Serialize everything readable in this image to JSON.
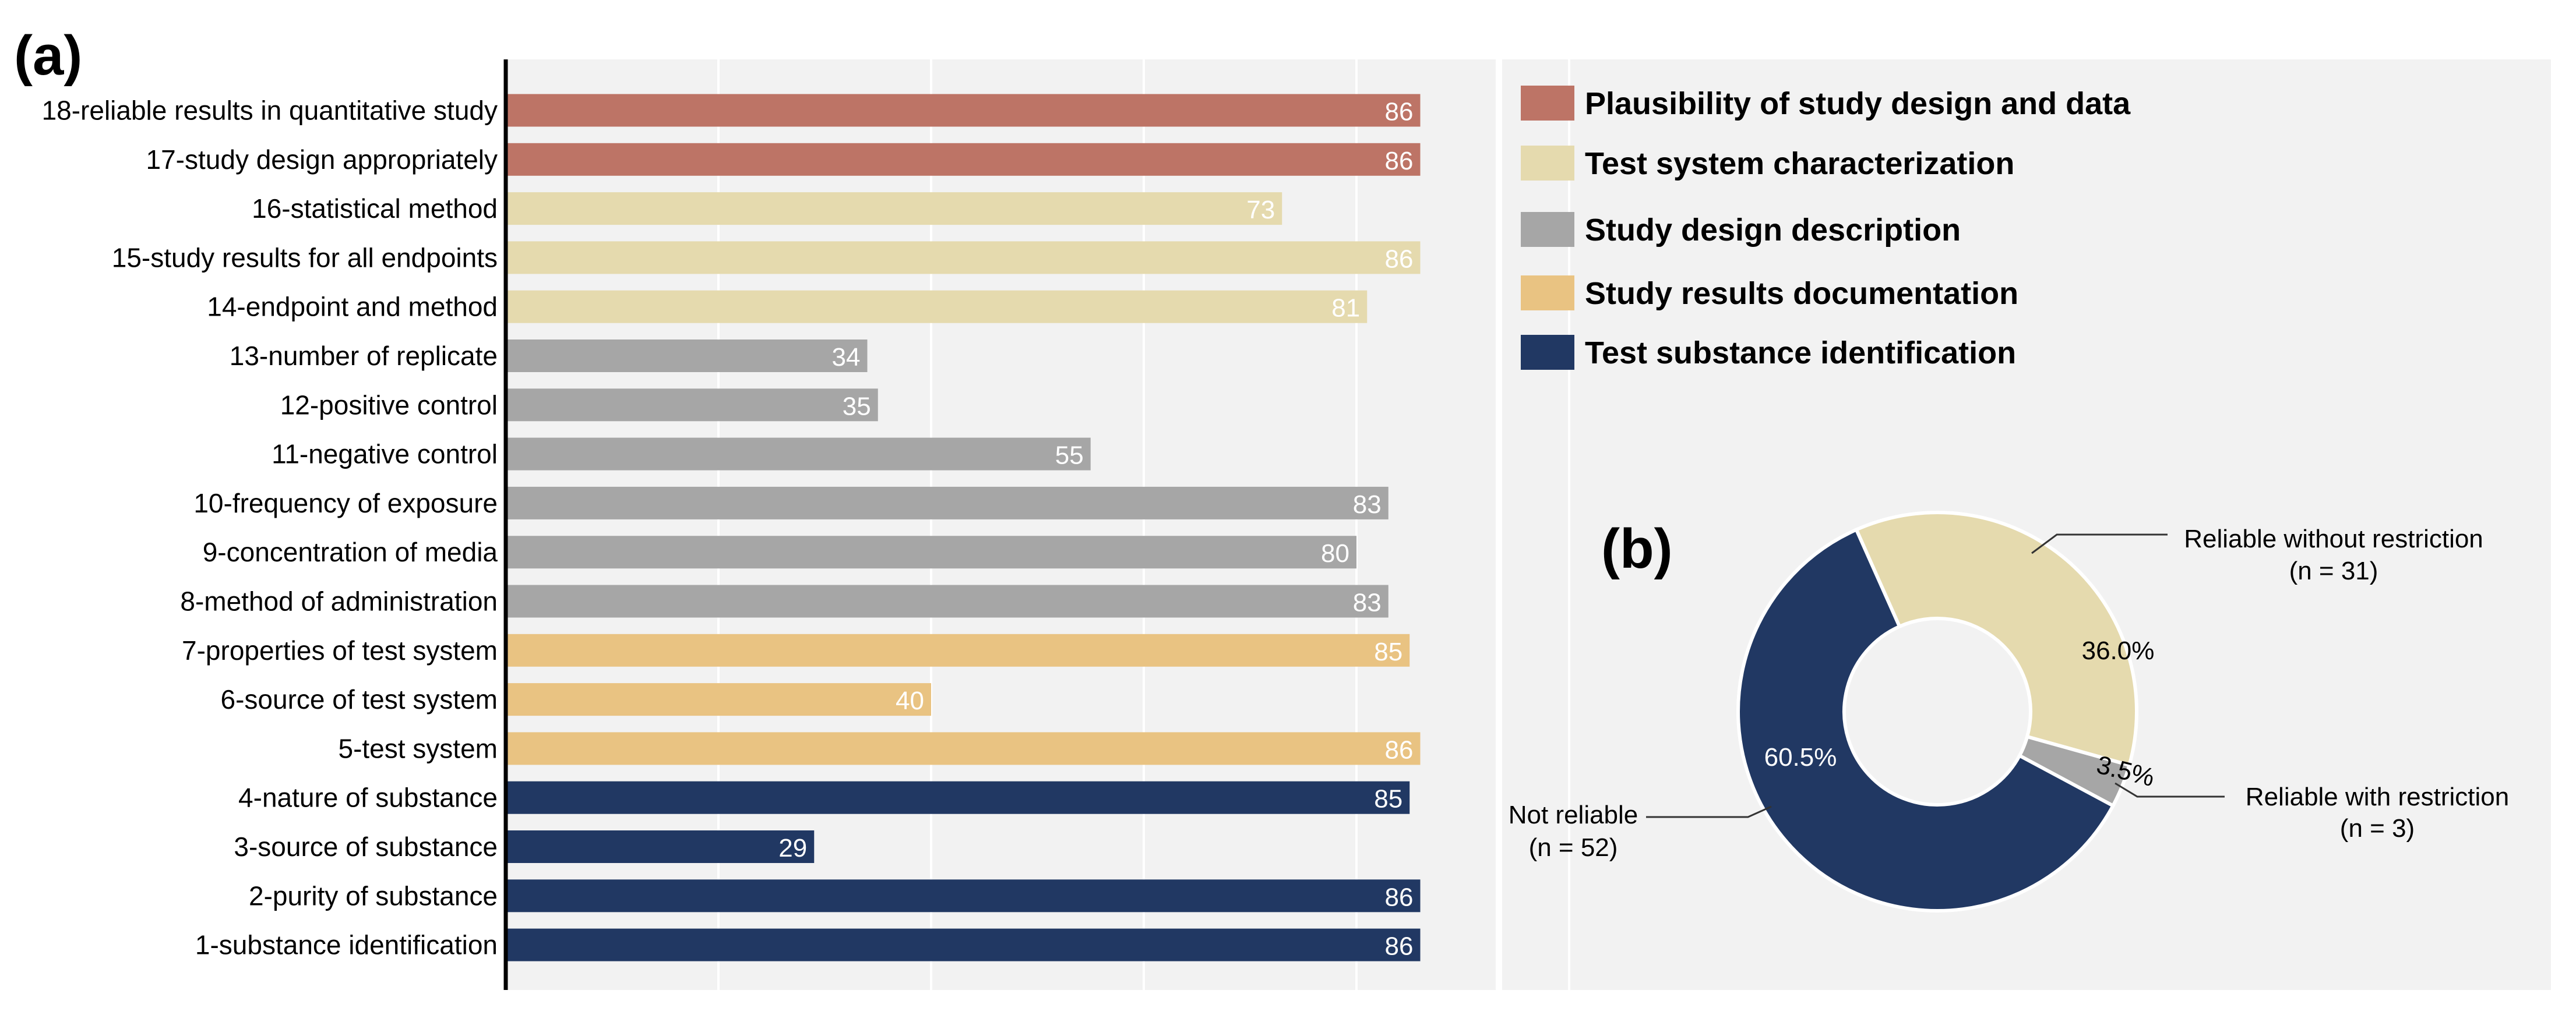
{
  "chart_data": [
    {
      "type": "bar",
      "orientation": "horizontal",
      "panel_label": "(a)",
      "grid": true,
      "xlim": [
        0,
        100
      ],
      "categories": [
        "18-reliable results in quantitative study",
        "17-study design appropriately",
        "16-statistical method",
        "15-study results for all endpoints",
        "14-endpoint and method",
        "13-number of replicate",
        "12-positive control",
        "11-negative control",
        "10-frequency of exposure",
        "9-concentration of media",
        "8-method of administration",
        "7-properties of test system",
        "6-source of test system",
        "5-test system",
        "4-nature of substance",
        "3-source  of substance",
        "2-purity of substance",
        "1-substance identification"
      ],
      "values": [
        86,
        86,
        73,
        86,
        81,
        34,
        35,
        55,
        83,
        80,
        83,
        85,
        40,
        86,
        85,
        29,
        86,
        86
      ],
      "groups": [
        0,
        0,
        1,
        1,
        1,
        2,
        2,
        2,
        2,
        2,
        2,
        3,
        3,
        3,
        4,
        4,
        4,
        4
      ],
      "legend": [
        {
          "label": "Plausibility of study design and data",
          "color": "#bd7466"
        },
        {
          "label": "Test system characterization",
          "color": "#e5daae"
        },
        {
          "label": "Study design description",
          "color": "#a6a6a6"
        },
        {
          "label": "Study results documentation",
          "color": "#e9c382"
        },
        {
          "label": "Test substance identification",
          "color": "#213863"
        }
      ]
    },
    {
      "type": "pie",
      "donut": true,
      "panel_label": "(b)",
      "slices": [
        {
          "label": "Reliable without restriction",
          "n_label": "(n = 31)",
          "value": 36.0,
          "pct_label": "36.0%",
          "color": "#e5daae"
        },
        {
          "label": "Reliable with restriction",
          "n_label": "(n = 3)",
          "value": 3.5,
          "pct_label": "3.5%",
          "color": "#a6a6a6"
        },
        {
          "label": "Not reliable",
          "n_label": "(n = 52)",
          "value": 60.5,
          "pct_label": "60.5%",
          "color": "#213863"
        }
      ]
    }
  ]
}
